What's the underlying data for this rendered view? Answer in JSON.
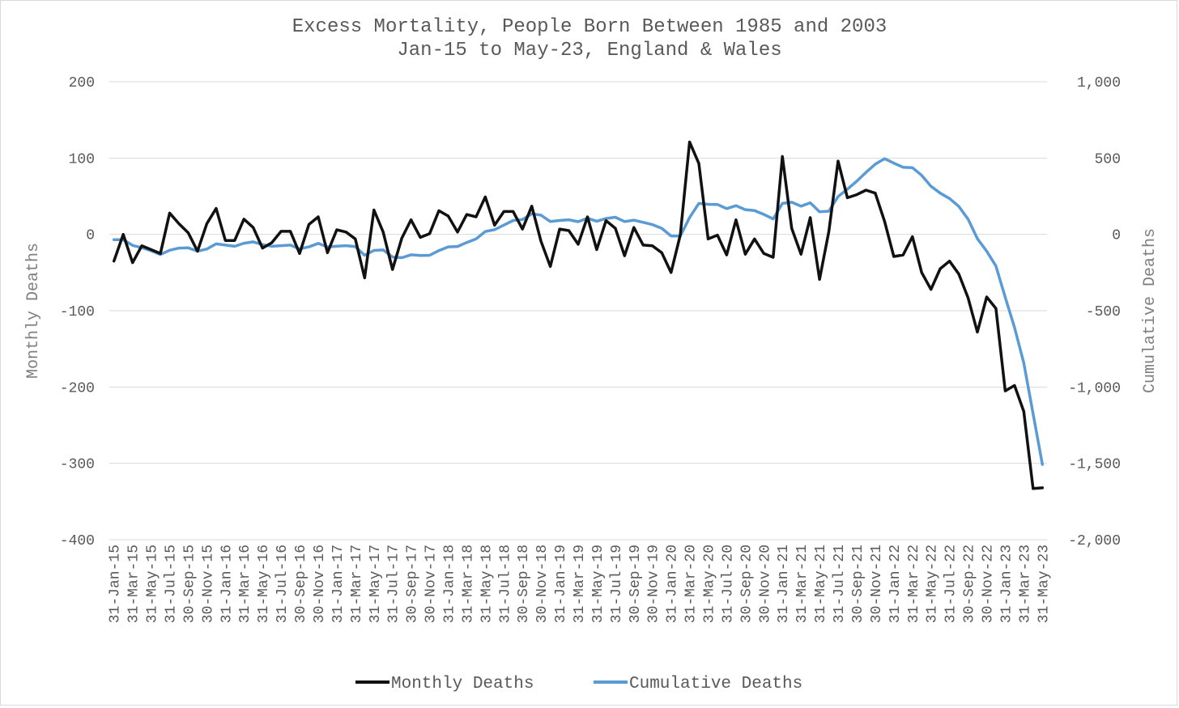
{
  "chart_data": {
    "type": "line",
    "title": [
      "Excess Mortality, People Born Between 1985 and 2003",
      "Jan-15 to May-23, England & Wales"
    ],
    "ylabel_left": "Monthly Deaths",
    "ylabel_right": "Cumulative Deaths",
    "ylim_left": [
      -400,
      200
    ],
    "ylim_right": [
      -2000,
      1000
    ],
    "yticks_left": [
      200,
      100,
      0,
      -100,
      -200,
      -300,
      -400
    ],
    "yticks_right": [
      1000,
      500,
      0,
      -500,
      -1000,
      -1500,
      -2000
    ],
    "yticklabels_left": [
      "200",
      "100",
      "0",
      "-100",
      "-200",
      "-300",
      "-400"
    ],
    "yticklabels_right": [
      "1,000",
      "500",
      "0",
      "-500",
      "-1,000",
      "-1,500",
      "-2,000"
    ],
    "grid": true,
    "legend": "bottom",
    "x": [
      "31-Jan-15",
      "28-Feb-15",
      "31-Mar-15",
      "30-Apr-15",
      "31-May-15",
      "30-Jun-15",
      "31-Jul-15",
      "31-Aug-15",
      "30-Sep-15",
      "31-Oct-15",
      "30-Nov-15",
      "31-Dec-15",
      "31-Jan-16",
      "29-Feb-16",
      "31-Mar-16",
      "30-Apr-16",
      "31-May-16",
      "30-Jun-16",
      "31-Jul-16",
      "31-Aug-16",
      "30-Sep-16",
      "31-Oct-16",
      "30-Nov-16",
      "31-Dec-16",
      "31-Jan-17",
      "28-Feb-17",
      "31-Mar-17",
      "30-Apr-17",
      "31-May-17",
      "30-Jun-17",
      "31-Jul-17",
      "31-Aug-17",
      "30-Sep-17",
      "31-Oct-17",
      "30-Nov-17",
      "31-Dec-17",
      "31-Jan-18",
      "28-Feb-18",
      "31-Mar-18",
      "30-Apr-18",
      "31-May-18",
      "30-Jun-18",
      "31-Jul-18",
      "31-Aug-18",
      "30-Sep-18",
      "31-Oct-18",
      "30-Nov-18",
      "31-Dec-18",
      "31-Jan-19",
      "28-Feb-19",
      "31-Mar-19",
      "30-Apr-19",
      "31-May-19",
      "30-Jun-19",
      "31-Jul-19",
      "31-Aug-19",
      "30-Sep-19",
      "31-Oct-19",
      "30-Nov-19",
      "31-Dec-19",
      "31-Jan-20",
      "29-Feb-20",
      "31-Mar-20",
      "30-Apr-20",
      "31-May-20",
      "30-Jun-20",
      "31-Jul-20",
      "31-Aug-20",
      "30-Sep-20",
      "31-Oct-20",
      "30-Nov-20",
      "31-Dec-20",
      "31-Jan-21",
      "28-Feb-21",
      "31-Mar-21",
      "30-Apr-21",
      "31-May-21",
      "30-Jun-21",
      "31-Jul-21",
      "31-Aug-21",
      "30-Sep-21",
      "31-Oct-21",
      "30-Nov-21",
      "31-Dec-21",
      "31-Jan-22",
      "28-Feb-22",
      "31-Mar-22",
      "30-Apr-22",
      "31-May-22",
      "30-Jun-22",
      "31-Jul-22",
      "31-Aug-22",
      "30-Sep-22",
      "31-Oct-22",
      "30-Nov-22",
      "31-Dec-22",
      "31-Jan-23",
      "28-Feb-23",
      "31-Mar-23",
      "30-Apr-23",
      "31-May-23"
    ],
    "x_tick_labels": [
      "31-Jan-15",
      "31-Mar-15",
      "31-May-15",
      "31-Jul-15",
      "30-Sep-15",
      "30-Nov-15",
      "31-Jan-16",
      "31-Mar-16",
      "31-May-16",
      "31-Jul-16",
      "30-Sep-16",
      "30-Nov-16",
      "31-Jan-17",
      "31-Mar-17",
      "31-May-17",
      "31-Jul-17",
      "30-Sep-17",
      "30-Nov-17",
      "31-Jan-18",
      "31-Mar-18",
      "31-May-18",
      "31-Jul-18",
      "30-Sep-18",
      "30-Nov-18",
      "31-Jan-19",
      "31-Mar-19",
      "31-May-19",
      "31-Jul-19",
      "30-Sep-19",
      "30-Nov-19",
      "31-Jan-20",
      "31-Mar-20",
      "31-May-20",
      "31-Jul-20",
      "30-Sep-20",
      "30-Nov-20",
      "31-Jan-21",
      "31-Mar-21",
      "31-May-21",
      "31-Jul-21",
      "30-Sep-21",
      "30-Nov-21",
      "31-Jan-22",
      "31-Mar-22",
      "31-May-22",
      "31-Jul-22",
      "30-Sep-22",
      "30-Nov-22",
      "31-Jan-23",
      "31-Mar-23",
      "31-May-23"
    ],
    "series": [
      {
        "name": "Monthly Deaths",
        "axis": "left",
        "color": "#111111",
        "values": [
          -35,
          0,
          -37,
          -15,
          -20,
          -25,
          28,
          14,
          2,
          -22,
          14,
          34,
          -8,
          -8,
          20,
          9,
          -18,
          -11,
          4,
          4,
          -25,
          13,
          23,
          -24,
          6,
          3,
          -6,
          -57,
          32,
          3,
          -46,
          -5,
          19,
          -4,
          1,
          31,
          24,
          3,
          26,
          23,
          49,
          12,
          30,
          30,
          7,
          37,
          -9,
          -42,
          7,
          5,
          -13,
          23,
          -20,
          18,
          8,
          -28,
          9,
          -14,
          -15,
          -24,
          -50,
          -1,
          121,
          93,
          -6,
          -1,
          -27,
          19,
          -26,
          -6,
          -25,
          -30,
          102,
          8,
          -26,
          22,
          -59,
          4,
          96,
          48,
          52,
          58,
          54,
          17,
          -29,
          -27,
          -3,
          -50,
          -72,
          -45,
          -35,
          -52,
          -83,
          -128,
          -82,
          -97,
          -205,
          -198,
          -232,
          -333,
          -332
        ]
      },
      {
        "name": "Cumulative Deaths",
        "axis": "right",
        "color": "#5b9bd5",
        "values": [
          -35,
          -35,
          -72,
          -87,
          -107,
          -132,
          -104,
          -90,
          -88,
          -110,
          -96,
          -62,
          -70,
          -78,
          -58,
          -49,
          -67,
          -78,
          -74,
          -70,
          -95,
          -82,
          -59,
          -83,
          -77,
          -74,
          -80,
          -137,
          -105,
          -102,
          -148,
          -153,
          -134,
          -138,
          -137,
          -106,
          -82,
          -79,
          -53,
          -30,
          19,
          31,
          61,
          91,
          98,
          135,
          126,
          84,
          91,
          96,
          83,
          106,
          86,
          104,
          112,
          84,
          93,
          79,
          64,
          40,
          -10,
          -11,
          110,
          203,
          197,
          196,
          169,
          188,
          162,
          156,
          131,
          101,
          203,
          211,
          185,
          207,
          148,
          152,
          248,
          296,
          348,
          406,
          460,
          496,
          467,
          440,
          437,
          387,
          315,
          270,
          235,
          183,
          100,
          -28,
          -110,
          -207,
          -412,
          -610,
          -842,
          -1175,
          -1507
        ]
      }
    ]
  }
}
